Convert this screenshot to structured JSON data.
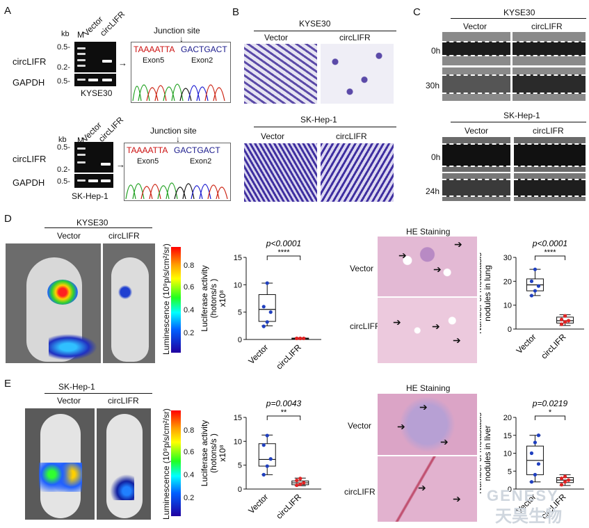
{
  "panels": {
    "A": {
      "letter": "A",
      "kb": "kb",
      "lane_m": "M",
      "lane_vector": "Vector",
      "lane_circ": "circLIFR",
      "row_circ": "circLIFR",
      "row_gapdh": "GAPDH",
      "markers": [
        "0.5-",
        "0.2-",
        "0.5-"
      ],
      "cell_top": "KYSE30",
      "cell_bottom": "SK-Hep-1",
      "junction": "Junction site",
      "seq_left": "TAAAATTA",
      "seq_right": "GACTGACT",
      "exon_left": "Exon5",
      "exon_right": "Exon2"
    },
    "B": {
      "letter": "B",
      "cell_top": "KYSE30",
      "cell_bottom": "SK-Hep-1",
      "vector": "Vector",
      "circ": "circLIFR"
    },
    "C": {
      "letter": "C",
      "cell_top": "KYSE30",
      "cell_bottom": "SK-Hep-1",
      "vector": "Vector",
      "circ": "circLIFR",
      "times_top": [
        "0h",
        "30h"
      ],
      "times_bottom": [
        "0h",
        "24h"
      ]
    },
    "D": {
      "letter": "D",
      "cell": "KYSE30",
      "vector": "Vector",
      "circ": "circLIFR",
      "colorbar_label": "Luminescence (10⁹p/s/cm²/sr)",
      "colorbar_ticks": [
        "0.8",
        "0.6",
        "0.4",
        "0.2"
      ],
      "he_title": "HE   Staining",
      "he_vector": "Vector",
      "he_circ": "circLIFR"
    },
    "E": {
      "letter": "E",
      "cell": "SK-Hep-1",
      "vector": "Vector",
      "circ": "circLIFR",
      "colorbar_label": "Luminescence (10⁹p/s/cm²/sr)",
      "colorbar_ticks": [
        "0.8",
        "0.6",
        "0.4",
        "0.2"
      ],
      "he_title": "HE   Staining",
      "he_vector": "Vector",
      "he_circ": "circLIFR"
    }
  },
  "watermark": {
    "en": "GENESY",
    "cn": "天昊生物"
  },
  "chart_data": [
    {
      "type": "box",
      "id": "D-luc",
      "ylabel": "Luciferase activity (hotons/s ) x10⁸",
      "pvalue": "p<0.0001",
      "sig": "****",
      "categories": [
        "Vector",
        "circLIFR"
      ],
      "ylim": [
        0,
        15
      ],
      "yticks": [
        0,
        5,
        10,
        15
      ],
      "boxes": [
        {
          "min": 2.5,
          "q1": 3.3,
          "median": 5.5,
          "q3": 8.2,
          "max": 10.3
        },
        {
          "min": 0.1,
          "q1": 0.15,
          "median": 0.2,
          "q3": 0.25,
          "max": 0.3
        }
      ],
      "points": [
        [
          2.4,
          3.2,
          5.0,
          6.0,
          10.3
        ],
        [
          0.2,
          0.2,
          0.2,
          0.2,
          0.2
        ]
      ],
      "colors": [
        "#1f3fbf",
        "#e02424"
      ]
    },
    {
      "type": "box",
      "id": "D-lung",
      "ylabel": "Number of metastasis nodules in lung",
      "pvalue": "p<0.0001",
      "sig": "****",
      "categories": [
        "Vector",
        "circLIFR"
      ],
      "ylim": [
        0,
        30
      ],
      "yticks": [
        0,
        10,
        20,
        30
      ],
      "boxes": [
        {
          "min": 14,
          "q1": 16,
          "median": 18.5,
          "q3": 21,
          "max": 25
        },
        {
          "min": 1.5,
          "q1": 2.5,
          "median": 3.5,
          "q3": 5,
          "max": 6
        }
      ],
      "points": [
        [
          14,
          16,
          18,
          20,
          25
        ],
        [
          2,
          3,
          3.5,
          4,
          5.5
        ]
      ],
      "colors": [
        "#1f3fbf",
        "#e02424"
      ]
    },
    {
      "type": "box",
      "id": "E-luc",
      "ylabel": "Luciferase activity (hotons/s ) x10⁸",
      "pvalue": "p=0.0043",
      "sig": "**",
      "categories": [
        "Vector",
        "circLIFR"
      ],
      "ylim": [
        0,
        15
      ],
      "yticks": [
        0,
        5,
        10,
        15
      ],
      "boxes": [
        {
          "min": 3,
          "q1": 4.8,
          "median": 6.2,
          "q3": 9.5,
          "max": 11.3
        },
        {
          "min": 0.7,
          "q1": 0.9,
          "median": 1.3,
          "q3": 1.7,
          "max": 2.3
        }
      ],
      "points": [
        [
          3,
          4.8,
          6.3,
          9.2,
          11.2
        ],
        [
          0.8,
          1.0,
          1.3,
          1.8,
          2.2
        ]
      ],
      "colors": [
        "#1f3fbf",
        "#e02424"
      ]
    },
    {
      "type": "box",
      "id": "E-liver",
      "ylabel": "Number of metastasis nodules in liver",
      "pvalue": "p=0.0219",
      "sig": "*",
      "categories": [
        "Vector",
        "circLIFR"
      ],
      "ylim": [
        0,
        20
      ],
      "yticks": [
        0,
        5,
        10,
        15,
        20
      ],
      "boxes": [
        {
          "min": 2,
          "q1": 4,
          "median": 8,
          "q3": 12,
          "max": 15
        },
        {
          "min": 1,
          "q1": 1.8,
          "median": 2.5,
          "q3": 3.2,
          "max": 4
        }
      ],
      "points": [
        [
          2,
          4,
          7,
          10,
          13,
          15
        ],
        [
          1.2,
          2,
          2.5,
          3,
          3.5
        ]
      ],
      "colors": [
        "#1f3fbf",
        "#e02424"
      ]
    }
  ]
}
